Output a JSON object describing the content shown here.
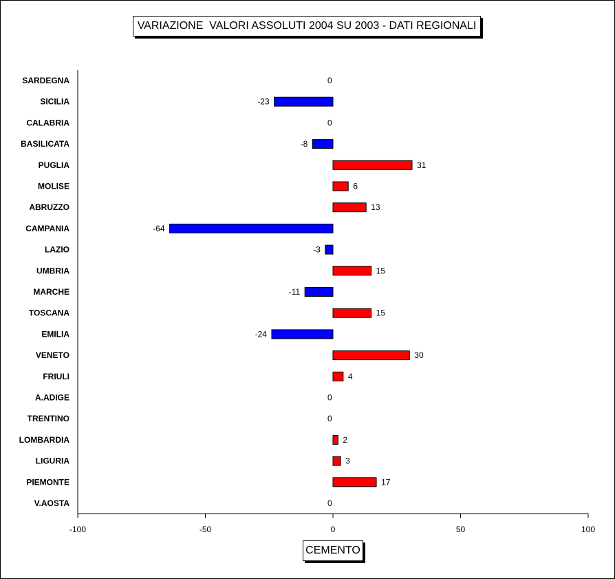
{
  "chart_data": {
    "type": "bar",
    "orientation": "horizontal",
    "title": "VARIAZIONE  VALORI ASSOLUTI 2004 SU 2003 - DATI REGIONALI",
    "xlabel": "CEMENTO",
    "ylabel": "",
    "xlim": [
      -100,
      100
    ],
    "xticks": [
      -100,
      -50,
      0,
      50,
      100
    ],
    "grid": false,
    "categories": [
      "SARDEGNA",
      "SICILIA",
      "CALABRIA",
      "BASILICATA",
      "PUGLIA",
      "MOLISE",
      "ABRUZZO",
      "CAMPANIA",
      "LAZIO",
      "UMBRIA",
      "MARCHE",
      "TOSCANA",
      "EMILIA",
      "VENETO",
      "FRIULI",
      "A.ADIGE",
      "TRENTINO",
      "LOMBARDIA",
      "LIGURIA",
      "PIEMONTE",
      "V.AOSTA"
    ],
    "values": [
      0,
      -23,
      0,
      -8,
      31,
      6,
      13,
      -64,
      -3,
      15,
      -11,
      15,
      -24,
      30,
      4,
      0,
      0,
      2,
      3,
      17,
      0
    ],
    "colors": {
      "positive": "#ff0000",
      "negative": "#0000ff"
    }
  }
}
